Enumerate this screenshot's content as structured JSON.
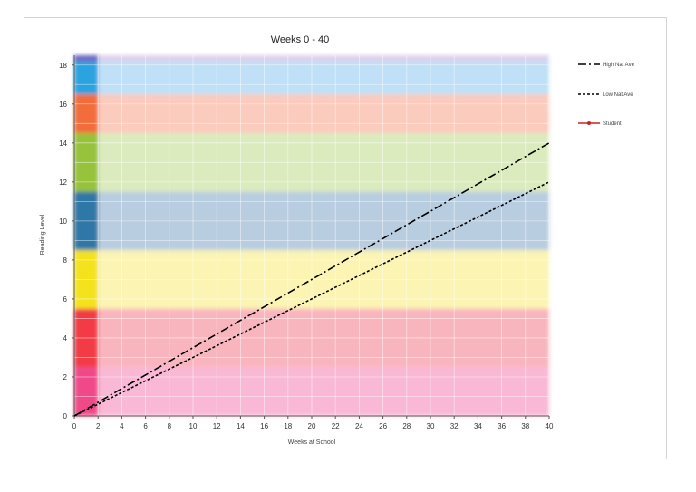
{
  "chart_data": {
    "type": "line",
    "title": "Weeks 0 - 40",
    "xlabel": "Weeks at School",
    "ylabel": "Reading Level",
    "xlim": [
      0,
      40
    ],
    "ylim": [
      0,
      18.5
    ],
    "xticks": [
      0,
      2,
      4,
      6,
      8,
      10,
      12,
      14,
      16,
      18,
      20,
      22,
      24,
      26,
      28,
      30,
      32,
      34,
      36,
      38,
      40
    ],
    "yticks": [
      0,
      2,
      4,
      6,
      8,
      10,
      12,
      14,
      16,
      18
    ],
    "grid": true,
    "legend_position": "right",
    "bands": [
      {
        "from": 0,
        "to": 2.5,
        "color": "#f9b8d6",
        "side_color": "#f0488a"
      },
      {
        "from": 2.5,
        "to": 5.5,
        "color": "#f9b5bd",
        "side_color": "#f23a45"
      },
      {
        "from": 5.5,
        "to": 8.5,
        "color": "#fbf4b2",
        "side_color": "#f4e21c"
      },
      {
        "from": 8.5,
        "to": 11.5,
        "color": "#b9cde0",
        "side_color": "#2e77a6"
      },
      {
        "from": 11.5,
        "to": 14.5,
        "color": "#dbebbd",
        "side_color": "#97c23a"
      },
      {
        "from": 14.5,
        "to": 16.5,
        "color": "#fbcbbd",
        "side_color": "#f26d3a"
      },
      {
        "from": 16.5,
        "to": 18.2,
        "color": "#bfe0f6",
        "side_color": "#29a3e0"
      },
      {
        "from": 18.2,
        "to": 18.5,
        "color": "#ddd0ee",
        "side_color": "#6c65c4"
      }
    ],
    "side_strip_xmax": 2,
    "series": [
      {
        "name": "High Nat Ave",
        "x": [
          0,
          40
        ],
        "y": [
          0,
          14
        ],
        "color": "#000000",
        "style": "dashdot"
      },
      {
        "name": "Low Nat Ave",
        "x": [
          0,
          40
        ],
        "y": [
          0,
          12
        ],
        "color": "#000000",
        "style": "dashed"
      },
      {
        "name": "Student",
        "x": [],
        "y": [],
        "color": "#cc2222",
        "style": "solid-marker"
      }
    ]
  }
}
